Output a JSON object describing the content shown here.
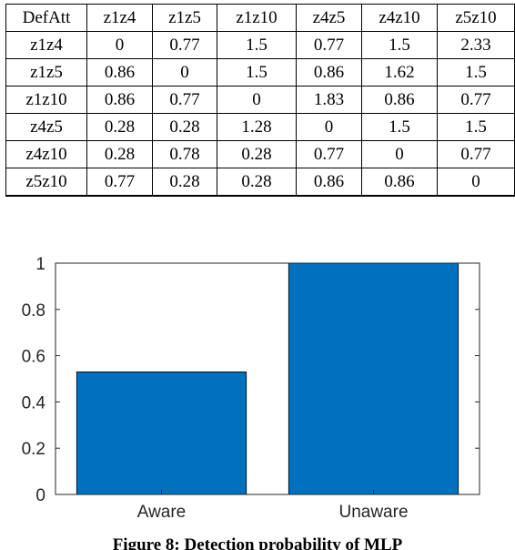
{
  "table": {
    "columns": [
      "DefAtt",
      "z1z4",
      "z1z5",
      "z1z10",
      "z4z5",
      "z4z10",
      "z5z10"
    ],
    "rows": [
      [
        "z1z4",
        "0",
        "0.77",
        "1.5",
        "0.77",
        "1.5",
        "2.33"
      ],
      [
        "z1z5",
        "0.86",
        "0",
        "1.5",
        "0.86",
        "1.62",
        "1.5"
      ],
      [
        "z1z10",
        "0.86",
        "0.77",
        "0",
        "1.83",
        "0.86",
        "0.77"
      ],
      [
        "z4z5",
        "0.28",
        "0.28",
        "1.28",
        "0",
        "1.5",
        "1.5"
      ],
      [
        "z4z10",
        "0.28",
        "0.78",
        "0.28",
        "0.77",
        "0",
        "0.77"
      ],
      [
        "z5z10",
        "0.77",
        "0.28",
        "0.28",
        "0.86",
        "0.86",
        "0"
      ]
    ]
  },
  "chart_data": {
    "type": "bar",
    "categories": [
      "Aware",
      "Unaware"
    ],
    "values": [
      0.53,
      1.0
    ],
    "ylim": [
      0,
      1
    ],
    "yticks": [
      "0",
      "0.2",
      "0.4",
      "0.6",
      "0.8",
      "1"
    ],
    "bar_color": "#0072BD",
    "grid": false,
    "title": "",
    "xlabel": "",
    "ylabel": ""
  },
  "caption": "Figure 8: Detection probability of MLP"
}
